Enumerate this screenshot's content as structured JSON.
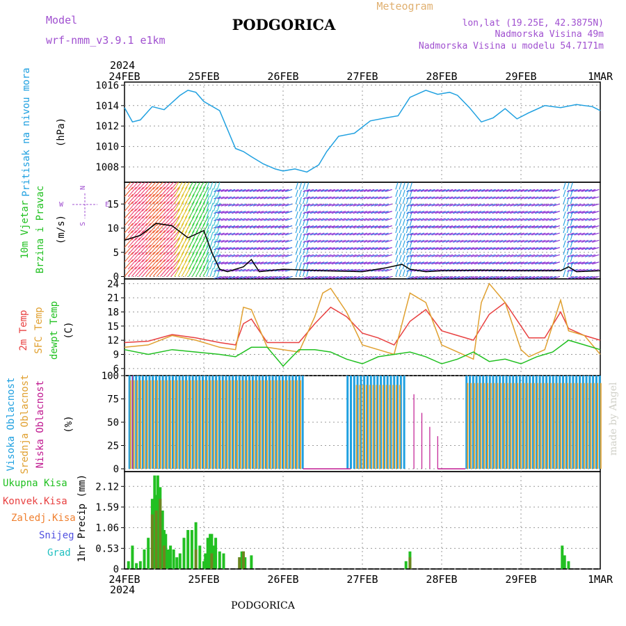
{
  "header": {
    "model_label": "Model",
    "model_name": "wrf-nmm_v3.9.1 e1km",
    "title": "PODGORICA",
    "meteogram_label": "Meteogram",
    "location": "lon,lat (19.25E, 42.3875N)",
    "elevation": "Nadmorska Visina 49m",
    "model_elevation": "Nadmorska Visina u modelu 54.7171m",
    "credit": "made by Angel",
    "footer_title": "PODGORICA"
  },
  "colors": {
    "pressure": "#1fa0e0",
    "temp2m": "#e84040",
    "sfc_temp": "#e0a030",
    "dewpt": "#20c020",
    "high_cloud": "#1fa0e0",
    "mid_cloud": "#e0a030",
    "low_cloud": "#c01890",
    "precip_total": "#22c022",
    "precip_conv": "#e84040",
    "precip_frozen": "#f08030",
    "snow": "#5050e0",
    "hail": "#20c0c0",
    "wind_purple": "#8020d0",
    "wind_blue": "#2060e0",
    "header_purple": "#a050d0",
    "meteogram_orange": "#e0b070"
  },
  "time_axis": {
    "year": "2024",
    "labels": [
      "24FEB",
      "25FEB",
      "26FEB",
      "27FEB",
      "28FEB",
      "29FEB",
      "1MAR"
    ]
  },
  "panels": {
    "pressure": {
      "label": "Pritisak na nivou mora",
      "unit": "(hPa)"
    },
    "wind": {
      "label1": "10m Vjetar",
      "label2": "Brzina i Pravac",
      "unit": "(m/s)",
      "compass_n": "N",
      "compass_s": "S",
      "compass_w": "W",
      "compass_e": "E"
    },
    "temp": {
      "label1": "2m Temp",
      "label2": "SFC Temp",
      "label3": "dewpt Temp",
      "unit": "(C)"
    },
    "cloud": {
      "label1": "Visoka Oblacnost",
      "label2": "Srednja Oblacnost",
      "label3": "Niska Oblacnost",
      "unit": "(%)"
    },
    "precip": {
      "label1": "Ukupna Kisa",
      "label2": "Konvek.Kisa",
      "label3": "Zaledj.Kisa",
      "label4": "Snijeg",
      "label5": "Grad",
      "unit": "1hr Precip (mm)"
    }
  },
  "chart_data": [
    {
      "type": "line",
      "title": "",
      "ylabel": "Pritisak na nivou mora (hPa)",
      "ylim": [
        1006.5,
        1016.3
      ],
      "yticks": [
        1008,
        1010,
        1012,
        1014,
        1016
      ],
      "x_unit": "days from 24FEB 00",
      "series": [
        {
          "name": "Pritisak na nivou mora",
          "x": [
            0,
            0.1,
            0.2,
            0.35,
            0.5,
            0.7,
            0.8,
            0.9,
            1.0,
            1.2,
            1.4,
            1.5,
            1.6,
            1.75,
            1.9,
            2.0,
            2.15,
            2.3,
            2.45,
            2.55,
            2.7,
            2.9,
            3.1,
            3.3,
            3.45,
            3.6,
            3.8,
            3.95,
            4.1,
            4.2,
            4.35,
            4.5,
            4.65,
            4.8,
            4.95,
            5.1,
            5.3,
            5.5,
            5.7,
            5.9,
            6.0
          ],
          "values": [
            1013.8,
            1012.4,
            1012.6,
            1013.9,
            1013.6,
            1015.0,
            1015.5,
            1015.3,
            1014.4,
            1013.5,
            1009.8,
            1009.5,
            1009.0,
            1008.3,
            1007.8,
            1007.6,
            1007.8,
            1007.5,
            1008.2,
            1009.5,
            1011.0,
            1011.3,
            1012.5,
            1012.8,
            1013.0,
            1014.8,
            1015.5,
            1015.1,
            1015.3,
            1015.0,
            1013.8,
            1012.4,
            1012.8,
            1013.7,
            1012.7,
            1013.3,
            1014.0,
            1013.8,
            1014.1,
            1013.9,
            1013.5
          ]
        }
      ]
    },
    {
      "type": "line",
      "title": "",
      "ylabel": "10m Vjetar Brzina i Pravac (m/s)",
      "ylim": [
        -0.5,
        19.5
      ],
      "yticks": [
        0,
        5,
        10,
        15
      ],
      "series": [
        {
          "name": "10m Vjetar",
          "x": [
            0,
            0.2,
            0.4,
            0.6,
            0.8,
            1.0,
            1.1,
            1.2,
            1.3,
            1.5,
            1.6,
            1.7,
            2.0,
            2.5,
            3.0,
            3.3,
            3.5,
            3.6,
            3.8,
            4.0,
            4.5,
            5.0,
            5.5,
            5.6,
            5.7,
            6.0
          ],
          "values": [
            7.5,
            8.5,
            11.0,
            10.5,
            8.0,
            9.5,
            5.0,
            1.5,
            1.0,
            2.0,
            3.5,
            1.0,
            1.5,
            1.2,
            1.0,
            1.8,
            2.5,
            1.5,
            1.0,
            1.2,
            1.3,
            1.2,
            1.2,
            2.0,
            1.0,
            1.2
          ]
        }
      ]
    },
    {
      "type": "line",
      "title": "",
      "ylabel": "Temp (C)",
      "ylim": [
        4.5,
        25.0
      ],
      "yticks": [
        6,
        9,
        12,
        15,
        18,
        21,
        24
      ],
      "series": [
        {
          "name": "2m Temp",
          "x": [
            0,
            0.3,
            0.6,
            0.9,
            1.2,
            1.4,
            1.5,
            1.6,
            1.8,
            2.0,
            2.2,
            2.4,
            2.6,
            2.8,
            3.0,
            3.2,
            3.4,
            3.6,
            3.8,
            4.0,
            4.2,
            4.4,
            4.6,
            4.8,
            5.0,
            5.1,
            5.3,
            5.5,
            5.6,
            5.8,
            6.0
          ],
          "values": [
            11.5,
            11.8,
            13.2,
            12.5,
            11.5,
            11.0,
            15.5,
            16.5,
            11.5,
            11.5,
            11.5,
            15.5,
            19.0,
            17.0,
            13.5,
            12.5,
            11.0,
            16.0,
            18.5,
            14.0,
            13.0,
            12.0,
            17.5,
            20.0,
            15.0,
            12.5,
            12.5,
            18.0,
            14.5,
            13.0,
            12.0
          ]
        },
        {
          "name": "SFC Temp",
          "x": [
            0,
            0.3,
            0.6,
            0.9,
            1.2,
            1.4,
            1.5,
            1.6,
            1.8,
            2.0,
            2.2,
            2.4,
            2.5,
            2.6,
            2.8,
            3.0,
            3.2,
            3.4,
            3.6,
            3.8,
            4.0,
            4.2,
            4.4,
            4.5,
            4.6,
            4.8,
            5.0,
            5.1,
            5.3,
            5.5,
            5.6,
            5.8,
            6.0
          ],
          "values": [
            10.5,
            11.0,
            13.0,
            12.0,
            10.5,
            10.0,
            19.0,
            18.5,
            10.5,
            10.0,
            9.5,
            17.0,
            22.0,
            23.0,
            18.0,
            11.0,
            10.0,
            9.0,
            22.0,
            20.0,
            11.0,
            9.5,
            8.0,
            20.0,
            24.0,
            20.0,
            10.0,
            8.5,
            10.0,
            20.5,
            14.0,
            13.0,
            9.0
          ]
        },
        {
          "name": "dewpt Temp",
          "x": [
            0,
            0.3,
            0.6,
            0.9,
            1.2,
            1.4,
            1.6,
            1.8,
            2.0,
            2.2,
            2.4,
            2.6,
            2.8,
            3.0,
            3.2,
            3.4,
            3.6,
            3.8,
            4.0,
            4.2,
            4.4,
            4.6,
            4.8,
            5.0,
            5.2,
            5.4,
            5.6,
            5.8,
            6.0
          ],
          "values": [
            10.0,
            9.0,
            10.0,
            9.5,
            9.0,
            8.5,
            10.5,
            10.5,
            6.5,
            10.0,
            10.0,
            9.5,
            8.0,
            7.0,
            8.5,
            9.0,
            9.5,
            8.5,
            7.0,
            8.0,
            9.5,
            7.5,
            8.0,
            7.0,
            8.5,
            9.5,
            12.0,
            11.0,
            10.0
          ]
        }
      ]
    },
    {
      "type": "bar",
      "title": "",
      "ylabel": "Oblacnost (%)",
      "ylim": [
        -3,
        100
      ],
      "yticks": [
        0,
        25,
        50,
        75,
        100
      ],
      "series": [
        {
          "name": "Visoka Oblacnost",
          "segments": [
            [
              0.05,
              2.25,
              100
            ],
            [
              2.8,
              3.55,
              100
            ],
            [
              4.3,
              6.0,
              100
            ]
          ]
        },
        {
          "name": "Srednja Oblacnost",
          "segments": [
            [
              0.05,
              2.25,
              95
            ],
            [
              2.9,
              3.5,
              90
            ],
            [
              4.3,
              6.0,
              92
            ]
          ]
        },
        {
          "name": "Niska Oblacnost",
          "spikes": [
            [
              0.1,
              100
            ],
            [
              3.65,
              80
            ],
            [
              3.75,
              60
            ],
            [
              3.85,
              45
            ],
            [
              3.95,
              35
            ]
          ]
        }
      ]
    },
    {
      "type": "bar",
      "title": "",
      "ylabel": "1hr Precip (mm)",
      "ylim": [
        0,
        2.5
      ],
      "yticks": [
        0,
        0.53,
        1.06,
        1.59,
        2.12
      ],
      "series": [
        {
          "name": "Ukupna Kisa",
          "x": [
            0.05,
            0.1,
            0.15,
            0.2,
            0.25,
            0.3,
            0.35,
            0.38,
            0.4,
            0.42,
            0.45,
            0.48,
            0.5,
            0.52,
            0.55,
            0.58,
            0.62,
            0.66,
            0.7,
            0.75,
            0.8,
            0.85,
            0.9,
            0.95,
            1.0,
            1.02,
            1.05,
            1.08,
            1.1,
            1.12,
            1.15,
            1.2,
            1.25,
            1.45,
            1.48,
            1.5,
            1.52,
            1.6,
            3.55,
            3.6,
            5.52,
            5.55,
            5.6
          ],
          "values": [
            0.2,
            0.6,
            0.15,
            0.2,
            0.5,
            0.8,
            1.8,
            2.4,
            1.9,
            2.4,
            2.1,
            1.5,
            1.0,
            0.9,
            0.5,
            0.6,
            0.5,
            0.3,
            0.4,
            0.8,
            1.0,
            1.0,
            1.2,
            0.6,
            0.2,
            0.4,
            0.8,
            0.9,
            0.9,
            0.6,
            0.8,
            0.45,
            0.4,
            0.3,
            0.45,
            0.45,
            0.3,
            0.35,
            0.2,
            0.45,
            0.6,
            0.35,
            0.2
          ]
        },
        {
          "name": "Konvek.Kisa",
          "x": [
            0.35,
            0.4,
            0.45,
            0.5,
            0.9,
            1.1,
            1.45,
            1.5,
            3.6
          ],
          "values": [
            1.4,
            1.5,
            1.8,
            0.6,
            0.5,
            0.4,
            0.3,
            0.45,
            0.3
          ]
        }
      ]
    }
  ]
}
